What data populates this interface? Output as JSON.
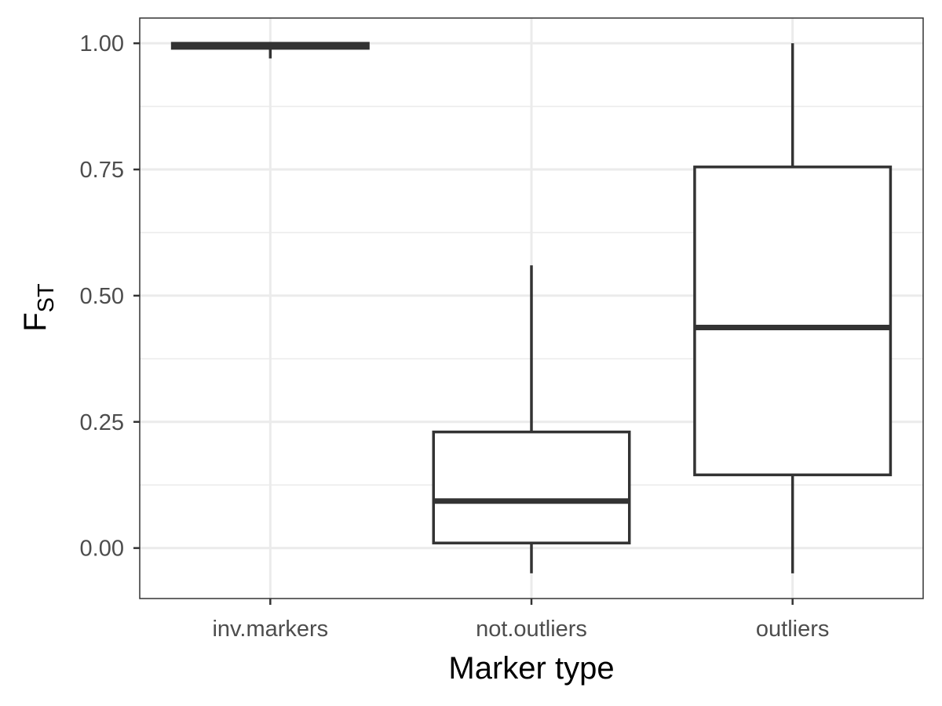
{
  "chart_data": {
    "type": "boxplot",
    "xlabel": "Marker type",
    "ylabel": {
      "main": "F",
      "subscript": "ST"
    },
    "ylim": [
      -0.1,
      1.05
    ],
    "yticks": [
      0.0,
      0.25,
      0.5,
      0.75,
      1.0
    ],
    "ytick_labels": [
      "0.00",
      "0.25",
      "0.50",
      "0.75",
      "1.00"
    ],
    "grid": true,
    "categories": [
      "inv.markers",
      "not.outliers",
      "outliers"
    ],
    "boxes": [
      {
        "category": "inv.markers",
        "whisker_low": 0.97,
        "q1": 0.99,
        "median": 0.995,
        "q3": 1.0,
        "whisker_high": 1.0
      },
      {
        "category": "not.outliers",
        "whisker_low": -0.05,
        "q1": 0.01,
        "median": 0.093,
        "q3": 0.23,
        "whisker_high": 0.56
      },
      {
        "category": "outliers",
        "whisker_low": -0.05,
        "q1": 0.145,
        "median": 0.437,
        "q3": 0.755,
        "whisker_high": 1.0
      }
    ],
    "colors": {
      "box_line": "#333333",
      "box_fill": "#ffffff",
      "grid": "#ebebeb",
      "panel_border": "#333333"
    }
  }
}
